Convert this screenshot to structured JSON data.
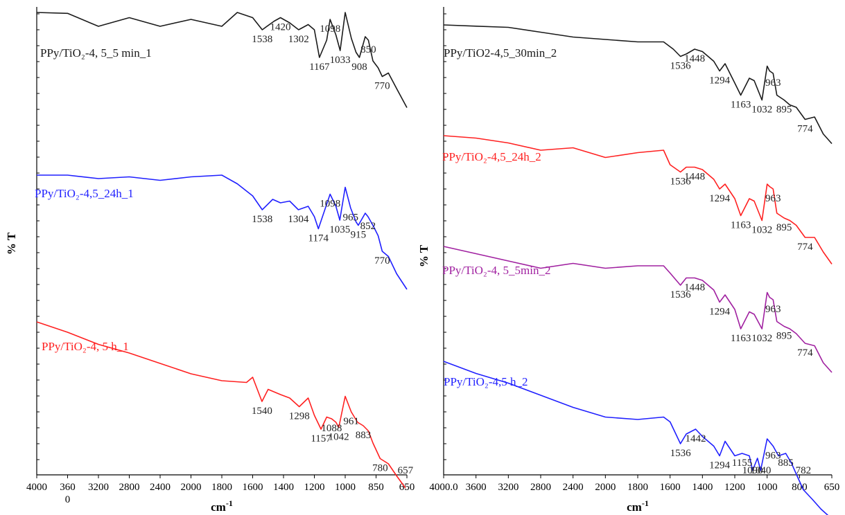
{
  "colors": {
    "black": "#1a1a1a",
    "blue": "#1f1fff",
    "red": "#ff2020",
    "purple": "#a020a0"
  },
  "chart_data": [
    {
      "type": "line",
      "panel": "left",
      "xlabel": "cm",
      "xlabel_sup": "-1",
      "ylabel": "% T",
      "x_reversed": true,
      "xlim": [
        4000,
        650
      ],
      "x_tick_labels": [
        "4000",
        "360",
        "3200",
        "2800",
        "2400",
        "2000",
        "1800",
        "1600",
        "1400",
        "1200",
        "1000",
        "850",
        "650"
      ],
      "x_tick_note": "0",
      "series": [
        {
          "name": "PPy/TiO₂-4, 5_5 min_1",
          "color": "black",
          "points": [
            [
              4000,
              0.0
            ],
            [
              3600,
              0.05
            ],
            [
              3200,
              0.8
            ],
            [
              2800,
              0.3
            ],
            [
              2400,
              0.8
            ],
            [
              2000,
              0.4
            ],
            [
              1800,
              0.8
            ],
            [
              1700,
              0.0
            ],
            [
              1600,
              0.3
            ],
            [
              1538,
              1.0
            ],
            [
              1460,
              0.5
            ],
            [
              1420,
              0.3
            ],
            [
              1360,
              0.6
            ],
            [
              1302,
              1.0
            ],
            [
              1240,
              0.7
            ],
            [
              1200,
              1.0
            ],
            [
              1167,
              2.6
            ],
            [
              1120,
              1.6
            ],
            [
              1098,
              0.4
            ],
            [
              1060,
              1.3
            ],
            [
              1033,
              2.2
            ],
            [
              1000,
              0.0
            ],
            [
              960,
              1.5
            ],
            [
              930,
              2.3
            ],
            [
              908,
              2.6
            ],
            [
              870,
              1.4
            ],
            [
              850,
              1.6
            ],
            [
              820,
              2.8
            ],
            [
              790,
              3.2
            ],
            [
              770,
              3.7
            ],
            [
              740,
              3.5
            ],
            [
              700,
              4.4
            ],
            [
              650,
              5.5
            ]
          ],
          "peaks": [
            1538,
            1420,
            1302,
            1167,
            1098,
            1033,
            908,
            850,
            770
          ]
        },
        {
          "name": "PPy/TiO₂-4,5_24h_1",
          "color": "blue",
          "points": [
            [
              4000,
              0.0
            ],
            [
              3600,
              0.0
            ],
            [
              3200,
              0.2
            ],
            [
              2800,
              0.1
            ],
            [
              2400,
              0.3
            ],
            [
              2000,
              0.1
            ],
            [
              1800,
              0.0
            ],
            [
              1700,
              0.5
            ],
            [
              1600,
              1.2
            ],
            [
              1538,
              2.0
            ],
            [
              1470,
              1.4
            ],
            [
              1420,
              1.6
            ],
            [
              1360,
              1.5
            ],
            [
              1304,
              2.0
            ],
            [
              1240,
              1.8
            ],
            [
              1200,
              2.4
            ],
            [
              1174,
              3.1
            ],
            [
              1140,
              2.2
            ],
            [
              1098,
              1.1
            ],
            [
              1060,
              1.8
            ],
            [
              1035,
              2.6
            ],
            [
              1000,
              0.7
            ],
            [
              965,
              1.9
            ],
            [
              930,
              2.7
            ],
            [
              915,
              2.9
            ],
            [
              870,
              2.2
            ],
            [
              852,
              2.4
            ],
            [
              820,
              2.9
            ],
            [
              790,
              3.5
            ],
            [
              770,
              4.4
            ],
            [
              740,
              4.7
            ],
            [
              700,
              5.7
            ],
            [
              650,
              6.6
            ]
          ],
          "peaks": [
            1538,
            1304,
            1174,
            1098,
            1035,
            965,
            915,
            852,
            770
          ]
        },
        {
          "name": "PPy/TiO₂-4, 5 h_1",
          "color": "red",
          "points": [
            [
              4000,
              0.0
            ],
            [
              3600,
              0.6
            ],
            [
              3200,
              1.3
            ],
            [
              2800,
              1.8
            ],
            [
              2400,
              2.4
            ],
            [
              2000,
              3.0
            ],
            [
              1800,
              3.4
            ],
            [
              1640,
              3.5
            ],
            [
              1600,
              3.2
            ],
            [
              1540,
              4.6
            ],
            [
              1500,
              3.9
            ],
            [
              1420,
              4.2
            ],
            [
              1360,
              4.4
            ],
            [
              1298,
              4.9
            ],
            [
              1240,
              4.4
            ],
            [
              1200,
              5.4
            ],
            [
              1157,
              6.2
            ],
            [
              1120,
              5.5
            ],
            [
              1088,
              5.6
            ],
            [
              1060,
              5.8
            ],
            [
              1042,
              6.1
            ],
            [
              1000,
              4.3
            ],
            [
              961,
              5.2
            ],
            [
              920,
              5.8
            ],
            [
              883,
              6.0
            ],
            [
              850,
              6.3
            ],
            [
              820,
              7.0
            ],
            [
              780,
              7.9
            ],
            [
              740,
              8.2
            ],
            [
              700,
              8.9
            ],
            [
              657,
              9.6
            ]
          ],
          "peaks": [
            1540,
            1298,
            1157,
            1088,
            1042,
            961,
            883,
            780,
            657
          ]
        }
      ]
    },
    {
      "type": "line",
      "panel": "right",
      "xlabel": "cm",
      "xlabel_sup": "-1",
      "ylabel": "% T",
      "x_reversed": true,
      "xlim": [
        4000,
        650
      ],
      "x_tick_labels": [
        "4000.0",
        "3600",
        "3200",
        "2800",
        "2400",
        "2000",
        "1800",
        "1600",
        "1400",
        "1200",
        "1000",
        "800",
        "650"
      ],
      "series": [
        {
          "name": "PPy/TiO2-4,5_30min_2",
          "color": "black",
          "points": [
            [
              4000,
              0.0
            ],
            [
              3600,
              0.05
            ],
            [
              3200,
              0.1
            ],
            [
              2800,
              0.3
            ],
            [
              2400,
              0.5
            ],
            [
              2000,
              0.6
            ],
            [
              1800,
              0.7
            ],
            [
              1640,
              0.7
            ],
            [
              1580,
              1.0
            ],
            [
              1536,
              1.3
            ],
            [
              1500,
              1.2
            ],
            [
              1448,
              1.0
            ],
            [
              1400,
              1.1
            ],
            [
              1330,
              1.5
            ],
            [
              1294,
              1.9
            ],
            [
              1260,
              1.6
            ],
            [
              1200,
              2.4
            ],
            [
              1163,
              2.9
            ],
            [
              1110,
              2.2
            ],
            [
              1080,
              2.3
            ],
            [
              1032,
              3.1
            ],
            [
              1000,
              1.7
            ],
            [
              985,
              1.9
            ],
            [
              963,
              2.0
            ],
            [
              940,
              2.9
            ],
            [
              895,
              3.1
            ],
            [
              860,
              3.3
            ],
            [
              820,
              3.4
            ],
            [
              774,
              3.9
            ],
            [
              730,
              3.8
            ],
            [
              690,
              4.5
            ],
            [
              650,
              4.9
            ]
          ],
          "peaks": [
            1536,
            1448,
            1294,
            1163,
            1032,
            963,
            895,
            774
          ]
        },
        {
          "name": "PPy/TiO₂-4,5_24h_2",
          "color": "red",
          "points": [
            [
              4000,
              0.0
            ],
            [
              3600,
              0.1
            ],
            [
              3200,
              0.3
            ],
            [
              2800,
              0.6
            ],
            [
              2400,
              0.5
            ],
            [
              2000,
              0.9
            ],
            [
              1800,
              0.7
            ],
            [
              1640,
              0.6
            ],
            [
              1600,
              1.2
            ],
            [
              1536,
              1.5
            ],
            [
              1500,
              1.3
            ],
            [
              1448,
              1.3
            ],
            [
              1400,
              1.4
            ],
            [
              1330,
              1.8
            ],
            [
              1294,
              2.2
            ],
            [
              1260,
              2.0
            ],
            [
              1200,
              2.6
            ],
            [
              1163,
              3.3
            ],
            [
              1110,
              2.6
            ],
            [
              1080,
              2.7
            ],
            [
              1032,
              3.5
            ],
            [
              1000,
              2.0
            ],
            [
              985,
              2.1
            ],
            [
              963,
              2.2
            ],
            [
              940,
              3.2
            ],
            [
              895,
              3.4
            ],
            [
              860,
              3.5
            ],
            [
              820,
              3.7
            ],
            [
              774,
              4.2
            ],
            [
              730,
              4.2
            ],
            [
              690,
              4.8
            ],
            [
              650,
              5.3
            ]
          ],
          "peaks": [
            1536,
            1448,
            1294,
            1163,
            1032,
            963,
            895,
            774
          ]
        },
        {
          "name": "PPy/TiO₂-4, 5_5min_2",
          "color": "purple",
          "points": [
            [
              4000,
              0.0
            ],
            [
              3600,
              0.3
            ],
            [
              3200,
              0.6
            ],
            [
              2800,
              0.9
            ],
            [
              2400,
              0.7
            ],
            [
              2000,
              0.9
            ],
            [
              1800,
              0.8
            ],
            [
              1640,
              0.8
            ],
            [
              1600,
              1.1
            ],
            [
              1536,
              1.6
            ],
            [
              1500,
              1.3
            ],
            [
              1448,
              1.3
            ],
            [
              1400,
              1.4
            ],
            [
              1330,
              1.8
            ],
            [
              1294,
              2.3
            ],
            [
              1260,
              2.0
            ],
            [
              1200,
              2.6
            ],
            [
              1163,
              3.4
            ],
            [
              1110,
              2.7
            ],
            [
              1080,
              2.8
            ],
            [
              1032,
              3.4
            ],
            [
              1000,
              1.9
            ],
            [
              985,
              2.1
            ],
            [
              963,
              2.2
            ],
            [
              940,
              3.1
            ],
            [
              895,
              3.3
            ],
            [
              860,
              3.4
            ],
            [
              820,
              3.6
            ],
            [
              774,
              4.0
            ],
            [
              730,
              4.1
            ],
            [
              690,
              4.8
            ],
            [
              650,
              5.2
            ]
          ],
          "peaks": [
            1536,
            1448,
            1294,
            1163,
            1032,
            963,
            895,
            774
          ]
        },
        {
          "name": "PPy/TiO₂-4,5 h_2",
          "color": "blue",
          "points": [
            [
              4000,
              0.0
            ],
            [
              3600,
              0.5
            ],
            [
              3200,
              0.9
            ],
            [
              2800,
              1.4
            ],
            [
              2400,
              1.9
            ],
            [
              2000,
              2.3
            ],
            [
              1800,
              2.4
            ],
            [
              1640,
              2.3
            ],
            [
              1600,
              2.5
            ],
            [
              1536,
              3.4
            ],
            [
              1500,
              3.0
            ],
            [
              1442,
              2.8
            ],
            [
              1400,
              3.1
            ],
            [
              1330,
              3.5
            ],
            [
              1294,
              3.9
            ],
            [
              1260,
              3.3
            ],
            [
              1200,
              3.9
            ],
            [
              1155,
              3.8
            ],
            [
              1110,
              3.9
            ],
            [
              1090,
              4.5
            ],
            [
              1060,
              4.0
            ],
            [
              1040,
              4.5
            ],
            [
              1000,
              3.2
            ],
            [
              963,
              3.5
            ],
            [
              930,
              3.9
            ],
            [
              885,
              3.8
            ],
            [
              850,
              4.2
            ],
            [
              810,
              4.8
            ],
            [
              782,
              5.3
            ],
            [
              740,
              5.7
            ],
            [
              700,
              6.1
            ],
            [
              650,
              6.5
            ]
          ],
          "peaks": [
            1536,
            1442,
            1294,
            1155,
            1090,
            1040,
            963,
            885,
            782
          ]
        }
      ]
    }
  ]
}
